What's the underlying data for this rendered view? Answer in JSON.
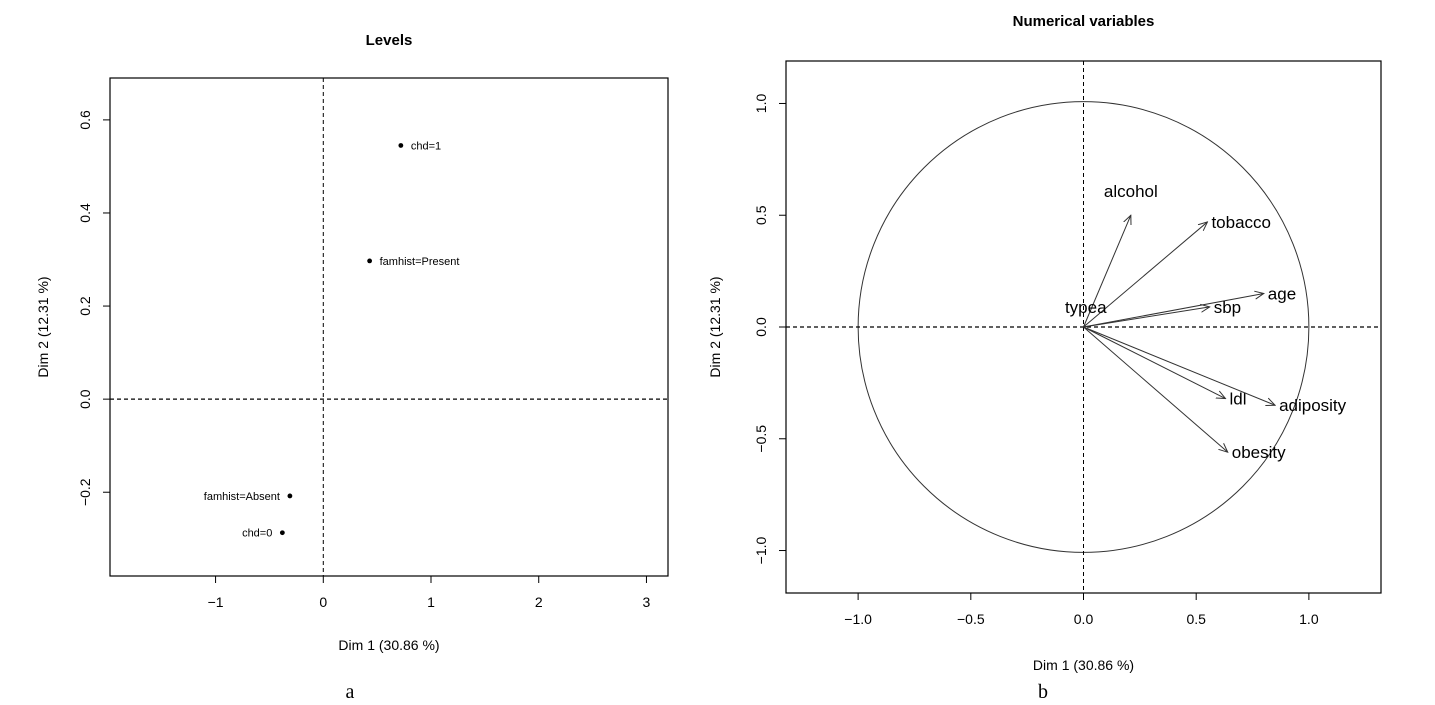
{
  "chart_data": [
    {
      "type": "scatter",
      "panel_caption": "a",
      "title": "Levels",
      "xlabel": "Dim 1 (30.86 %)",
      "ylabel": "Dim 2 (12.31 %)",
      "xlim": [
        -1.98,
        3.2
      ],
      "ylim": [
        -0.38,
        0.69
      ],
      "xticks": [
        -1,
        0,
        1,
        2,
        3
      ],
      "xtick_labels": [
        "−1",
        "0",
        "1",
        "2",
        "3"
      ],
      "yticks": [
        -0.2,
        0.0,
        0.2,
        0.4,
        0.6
      ],
      "ytick_labels": [
        "−0.2",
        "0.0",
        "0.2",
        "0.4",
        "0.6"
      ],
      "reference_lines": {
        "x": 0,
        "y": 0
      },
      "points": [
        {
          "label": "chd=1",
          "x": 0.72,
          "y": 0.545,
          "label_pos": "right"
        },
        {
          "label": "famhist=Present",
          "x": 0.43,
          "y": 0.297,
          "label_pos": "right"
        },
        {
          "label": "famhist=Absent",
          "x": -0.31,
          "y": -0.208,
          "label_pos": "left"
        },
        {
          "label": "chd=0",
          "x": -0.38,
          "y": -0.287,
          "label_pos": "left"
        }
      ]
    },
    {
      "type": "scatter",
      "subtype": "correlation-circle",
      "panel_caption": "b",
      "title": "Numerical variables",
      "xlabel": "Dim 1 (30.86 %)",
      "ylabel": "Dim 2 (12.31 %)",
      "xlim": [
        -1.32,
        1.32
      ],
      "ylim": [
        -1.19,
        1.19
      ],
      "xticks": [
        -1.0,
        -0.5,
        0.0,
        0.5,
        1.0
      ],
      "xtick_labels": [
        "−1.0",
        "−0.5",
        "0.0",
        "0.5",
        "1.0"
      ],
      "yticks": [
        -1.0,
        -0.5,
        0.0,
        0.5,
        1.0
      ],
      "ytick_labels": [
        "−1.0",
        "−0.5",
        "0.0",
        "0.5",
        "1.0"
      ],
      "reference_lines": {
        "x": 0,
        "y": 0
      },
      "unit_circle": true,
      "vectors": [
        {
          "label": "alcohol",
          "x": 0.21,
          "y": 0.5,
          "label_pos": "above"
        },
        {
          "label": "tobacco",
          "x": 0.55,
          "y": 0.47,
          "label_pos": "right"
        },
        {
          "label": "age",
          "x": 0.8,
          "y": 0.15,
          "label_pos": "right"
        },
        {
          "label": "sbp",
          "x": 0.56,
          "y": 0.09,
          "label_pos": "right"
        },
        {
          "label": "typea",
          "x": 0.01,
          "y": 0.01,
          "label_pos": "above"
        },
        {
          "label": "ldl",
          "x": 0.63,
          "y": -0.32,
          "label_pos": "right"
        },
        {
          "label": "adiposity",
          "x": 0.85,
          "y": -0.35,
          "label_pos": "right"
        },
        {
          "label": "obesity",
          "x": 0.64,
          "y": -0.56,
          "label_pos": "right"
        }
      ]
    }
  ]
}
